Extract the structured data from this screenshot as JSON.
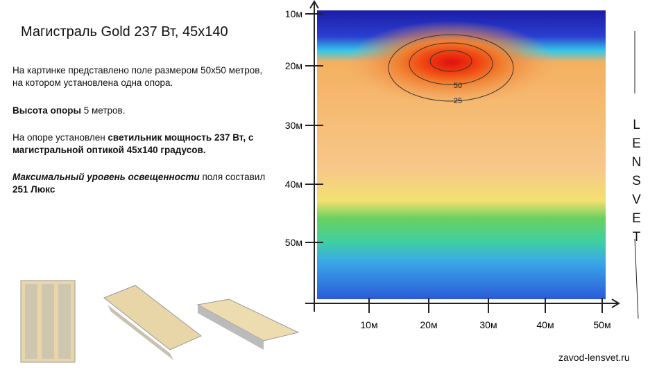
{
  "title": "Магистраль Gold 237 Вт, 45х140",
  "description": {
    "intro": "На картинке представлено поле размером 50х50 метров, на котором установлена одна опора.",
    "height": {
      "label": "Высота опоры",
      "value": " 5 метров."
    },
    "fixture": {
      "prefix": "На опоре установлен ",
      "bold": "светильник мощность 237 Вт, с магистральной оптикой 45х140 градусов."
    },
    "max": {
      "label": "Максимальный уровень освещенности",
      "middle": " поля составил ",
      "value": "251 Люкс"
    }
  },
  "diagram": {
    "y_axis_labels": [
      "10м",
      "20м",
      "30м",
      "40м",
      "50м"
    ],
    "x_axis_labels": [
      "10м",
      "20м",
      "30м",
      "40м",
      "50м"
    ],
    "contour_labels": [
      "50",
      "25"
    ]
  },
  "brand": "LENSVET",
  "website": "zavod-lensvet.ru"
}
